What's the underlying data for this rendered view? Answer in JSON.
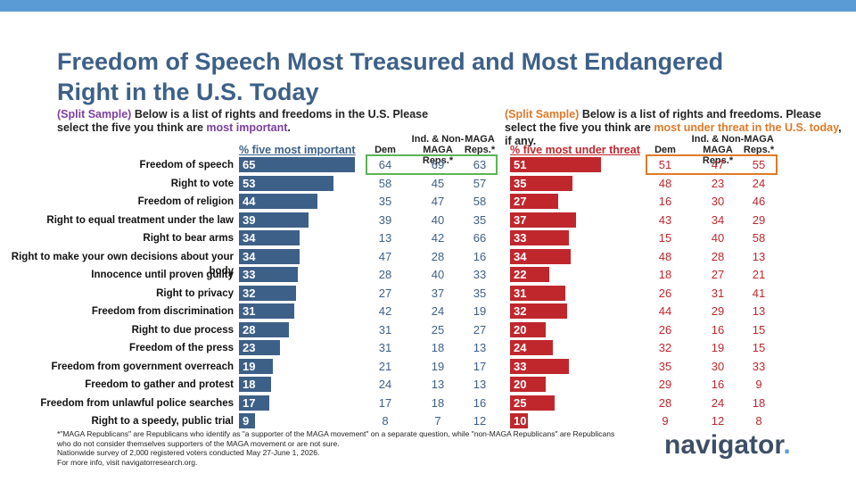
{
  "title": "Freedom of Speech Most Treasured and Most Endangered Right in the U.S. Today",
  "left_intro": {
    "prefix": "(Split Sample)",
    "text": " Below is a list of rights and freedoms in the U.S. Please select the five you think are ",
    "highlight": "most important",
    "suffix": "."
  },
  "right_intro": {
    "prefix": "(Split Sample)",
    "text": " Below is a list of rights and freedoms. Please select the five you think are ",
    "highlight": "most under threat in the U.S. today",
    "suffix": ", if any."
  },
  "column_headers": {
    "important": "% five most important",
    "threat": "% five most under threat",
    "dem": "Dem",
    "ind_nonmaga": "Ind. & Non-MAGA Reps.*",
    "maga": "MAGA Reps.*"
  },
  "chart_data": [
    {
      "type": "bar",
      "orientation": "horizontal",
      "title": "% five most important",
      "categories": [
        "Freedom of speech",
        "Right to vote",
        "Freedom of religion",
        "Right to equal treatment under the law",
        "Right to bear arms",
        "Right to make your own decisions about your body",
        "Innocence until proven guilty",
        "Right to privacy",
        "Freedom from discrimination",
        "Right to due process",
        "Freedom of the press",
        "Freedom from government overreach",
        "Freedom to gather and protest",
        "Freedom from unlawful police searches",
        "Right to a speedy, public trial"
      ],
      "values": [
        65,
        53,
        44,
        39,
        34,
        34,
        33,
        32,
        31,
        28,
        23,
        19,
        18,
        17,
        9
      ],
      "table": {
        "Dem": [
          64,
          58,
          35,
          39,
          13,
          47,
          28,
          27,
          42,
          31,
          31,
          21,
          24,
          17,
          8
        ],
        "Ind. & Non-MAGA Reps.*": [
          69,
          45,
          47,
          40,
          42,
          28,
          40,
          37,
          24,
          25,
          18,
          19,
          13,
          18,
          7
        ],
        "MAGA Reps.*": [
          63,
          57,
          58,
          35,
          66,
          16,
          33,
          35,
          19,
          27,
          13,
          17,
          13,
          16,
          12
        ]
      },
      "bar_color": "#3d6088"
    },
    {
      "type": "bar",
      "orientation": "horizontal",
      "title": "% five most under threat",
      "categories": [
        "Freedom of speech",
        "Right to vote",
        "Freedom of religion",
        "Right to equal treatment under the law",
        "Right to bear arms",
        "Right to make your own decisions about your body",
        "Innocence until proven guilty",
        "Right to privacy",
        "Freedom from discrimination",
        "Right to due process",
        "Freedom of the press",
        "Freedom from government overreach",
        "Freedom to gather and protest",
        "Freedom from unlawful police searches",
        "Right to a speedy, public trial"
      ],
      "values": [
        51,
        35,
        27,
        37,
        33,
        34,
        22,
        31,
        32,
        20,
        24,
        33,
        20,
        25,
        10
      ],
      "table": {
        "Dem": [
          51,
          48,
          16,
          43,
          15,
          48,
          18,
          26,
          44,
          26,
          32,
          35,
          29,
          28,
          9
        ],
        "Ind. & Non-MAGA Reps.*": [
          47,
          23,
          30,
          34,
          40,
          28,
          27,
          31,
          29,
          16,
          19,
          30,
          16,
          24,
          12
        ],
        "MAGA Reps.*": [
          55,
          24,
          46,
          29,
          58,
          13,
          21,
          41,
          13,
          15,
          15,
          33,
          9,
          18,
          8
        ]
      },
      "bar_color": "#c0272d"
    }
  ],
  "footnote": {
    "line1": "*\"MAGA Republicans\" are Republicans who identify as \"a supporter of the MAGA movement\" on a separate question, while \"non-MAGA Republicans\" are Republicans who do not consider themselves supporters of the MAGA movement or are not sure.",
    "line2": "Nationwide survey of 2,000 registered voters conducted May 27-June 1, 2026.",
    "line3": "For more info, visit navigatorresearch.org."
  },
  "logo": {
    "text": "navigator",
    "dot": "."
  },
  "colors": {
    "blue": "#3d6088",
    "red": "#c0272d",
    "green_box": "#5ab552",
    "orange_box": "#e07a28",
    "top_bar": "#5b9bd5"
  }
}
